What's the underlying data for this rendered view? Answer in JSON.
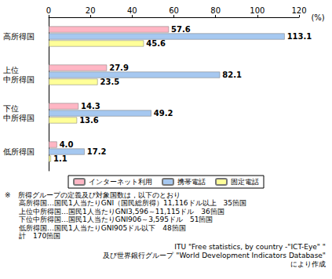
{
  "chart_data": {
    "type": "bar",
    "orientation": "horizontal",
    "categories": [
      "高所得国",
      "上位\n中所得国",
      "下位\n中所得国",
      "低所得国"
    ],
    "series": [
      {
        "name": "インターネット利用",
        "color": "#ffb6c4",
        "values": [
          57.6,
          27.9,
          14.3,
          4.0
        ],
        "value_labels": [
          "57.6",
          "27.9",
          "14.3",
          "4.0"
        ]
      },
      {
        "name": "携帯電話",
        "color": "#a6c8f0",
        "values": [
          113.1,
          82.1,
          49.2,
          17.2
        ]
      },
      {
        "name": "固定電話",
        "color": "#ffff99",
        "values": [
          45.6,
          23.5,
          13.6,
          1.1
        ]
      }
    ],
    "xlabel": "(%)",
    "xlim": [
      0,
      120
    ],
    "xticks": [
      0,
      20,
      40,
      60,
      80,
      100,
      120
    ],
    "grid": false,
    "legend": "bottom",
    "data_labels": true,
    "annotations": [
      "※　所得グループの定義及び対象国数は，以下のとおり",
      "　　高所得国…国民1人当たりGNI（国民総所得）11,116ドル以上　35箇国",
      "　　上位中所得国…国民1人当たりGNI3,596～11,115ドル　36箇国",
      "　　下位中所得国…国民1人当たりGNI906～3,595ドル　51箇国",
      "　　低所得国…国民1人当たりGNI905ドル以下　48箇国",
      "　　計　170箇国"
    ],
    "source": [
      "ITU \"Free statistics, by country -\"ICT-Eye\" \"",
      "及び世界銀行グループ \"World Development Indicators Database\"",
      "により作成"
    ]
  }
}
